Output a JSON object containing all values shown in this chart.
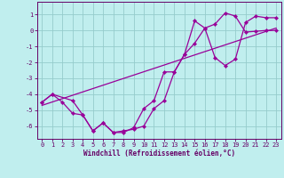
{
  "bg_color": "#c0eeee",
  "grid_color": "#96cccc",
  "line_color": "#990099",
  "spine_color": "#660066",
  "xlabel": "Windchill (Refroidissement éolien,°C)",
  "xlim_min": -0.5,
  "xlim_max": 23.5,
  "ylim_min": -6.8,
  "ylim_max": 1.8,
  "yticks": [
    1,
    0,
    -1,
    -2,
    -3,
    -4,
    -5,
    -6
  ],
  "xticks": [
    0,
    1,
    2,
    3,
    4,
    5,
    6,
    7,
    8,
    9,
    10,
    11,
    12,
    13,
    14,
    15,
    16,
    17,
    18,
    19,
    20,
    21,
    22,
    23
  ],
  "curve1_x": [
    0,
    1,
    2,
    3,
    4,
    5,
    6,
    7,
    8,
    9,
    10,
    11,
    12,
    13,
    14,
    15,
    16,
    17,
    18,
    19,
    20,
    21,
    22,
    23
  ],
  "curve1_y": [
    -4.5,
    -4.0,
    -4.5,
    -5.2,
    -5.3,
    -6.3,
    -5.8,
    -6.4,
    -6.4,
    -6.1,
    -4.9,
    -4.4,
    -2.6,
    -2.6,
    -1.5,
    -0.8,
    0.15,
    0.4,
    1.1,
    0.9,
    -0.1,
    -0.05,
    0.0,
    0.0
  ],
  "curve2_x": [
    0,
    1,
    3,
    4,
    5,
    6,
    7,
    8,
    9,
    10,
    11,
    12,
    13,
    14,
    15,
    16,
    17,
    18,
    19,
    20,
    21,
    22,
    23
  ],
  "curve2_y": [
    -4.5,
    -4.0,
    -4.4,
    -5.3,
    -6.3,
    -5.8,
    -6.4,
    -6.3,
    -6.2,
    -6.0,
    -4.9,
    -4.4,
    -2.6,
    -1.5,
    0.6,
    0.15,
    -1.7,
    -2.2,
    -1.8,
    0.5,
    0.9,
    0.8,
    0.8
  ],
  "line_x": [
    0,
    23
  ],
  "line_y": [
    -4.7,
    0.15
  ]
}
